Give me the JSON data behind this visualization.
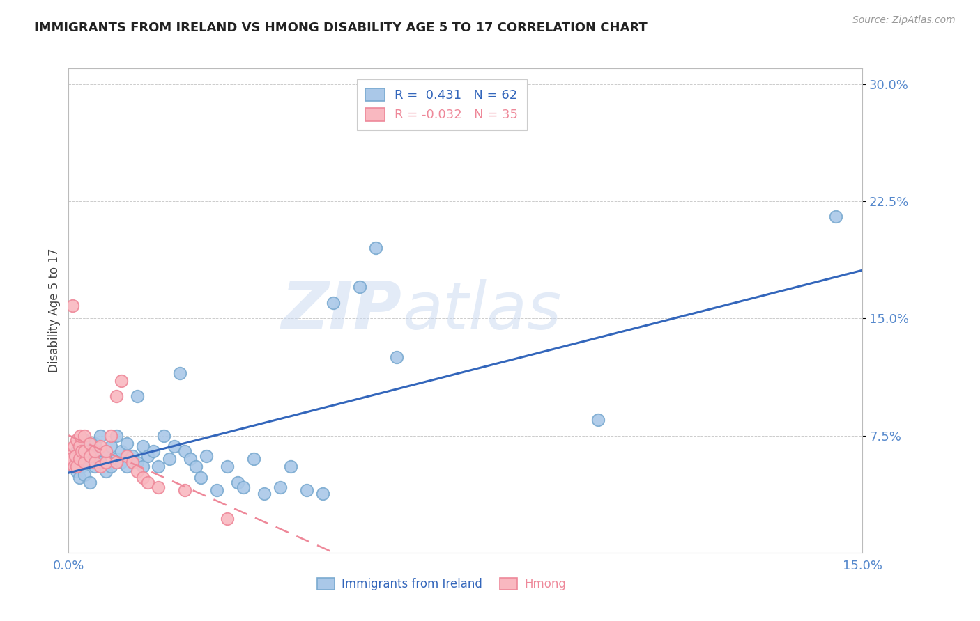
{
  "title": "IMMIGRANTS FROM IRELAND VS HMONG DISABILITY AGE 5 TO 17 CORRELATION CHART",
  "source": "Source: ZipAtlas.com",
  "ylabel_label": "Disability Age 5 to 17",
  "legend_entries": [
    {
      "label": "Immigrants from Ireland",
      "R": "0.431",
      "N": "62",
      "color": "#6baed6"
    },
    {
      "label": "Hmong",
      "R": "-0.032",
      "N": "35",
      "color": "#fc8d8d"
    }
  ],
  "watermark_zip": "ZIP",
  "watermark_atlas": "atlas",
  "ireland_scatter_x": [
    0.0008,
    0.001,
    0.0012,
    0.0015,
    0.0015,
    0.002,
    0.002,
    0.0025,
    0.003,
    0.003,
    0.003,
    0.0035,
    0.004,
    0.004,
    0.005,
    0.005,
    0.005,
    0.006,
    0.006,
    0.007,
    0.007,
    0.008,
    0.008,
    0.009,
    0.009,
    0.01,
    0.01,
    0.011,
    0.011,
    0.012,
    0.013,
    0.013,
    0.014,
    0.014,
    0.015,
    0.016,
    0.017,
    0.018,
    0.019,
    0.02,
    0.021,
    0.022,
    0.023,
    0.024,
    0.025,
    0.026,
    0.028,
    0.03,
    0.032,
    0.033,
    0.035,
    0.037,
    0.04,
    0.042,
    0.045,
    0.048,
    0.05,
    0.055,
    0.058,
    0.062,
    0.1,
    0.145
  ],
  "ireland_scatter_y": [
    0.055,
    0.06,
    0.058,
    0.052,
    0.065,
    0.048,
    0.068,
    0.055,
    0.05,
    0.062,
    0.072,
    0.058,
    0.045,
    0.065,
    0.055,
    0.062,
    0.07,
    0.058,
    0.075,
    0.052,
    0.065,
    0.055,
    0.068,
    0.06,
    0.075,
    0.058,
    0.065,
    0.055,
    0.07,
    0.062,
    0.1,
    0.058,
    0.068,
    0.055,
    0.062,
    0.065,
    0.055,
    0.075,
    0.06,
    0.068,
    0.115,
    0.065,
    0.06,
    0.055,
    0.048,
    0.062,
    0.04,
    0.055,
    0.045,
    0.042,
    0.06,
    0.038,
    0.042,
    0.055,
    0.04,
    0.038,
    0.16,
    0.17,
    0.195,
    0.125,
    0.085,
    0.215
  ],
  "hmong_scatter_x": [
    0.0003,
    0.0005,
    0.0008,
    0.001,
    0.001,
    0.0012,
    0.0015,
    0.0015,
    0.002,
    0.002,
    0.0022,
    0.0025,
    0.003,
    0.003,
    0.003,
    0.004,
    0.004,
    0.005,
    0.005,
    0.006,
    0.006,
    0.007,
    0.007,
    0.008,
    0.009,
    0.009,
    0.01,
    0.011,
    0.012,
    0.013,
    0.014,
    0.015,
    0.017,
    0.022,
    0.03
  ],
  "hmong_scatter_y": [
    0.062,
    0.06,
    0.158,
    0.055,
    0.068,
    0.062,
    0.055,
    0.072,
    0.06,
    0.068,
    0.075,
    0.065,
    0.058,
    0.065,
    0.075,
    0.062,
    0.07,
    0.058,
    0.065,
    0.055,
    0.068,
    0.058,
    0.065,
    0.075,
    0.058,
    0.1,
    0.11,
    0.062,
    0.058,
    0.052,
    0.048,
    0.045,
    0.042,
    0.04,
    0.022
  ],
  "xlim": [
    0.0,
    0.15
  ],
  "ylim": [
    0.0,
    0.31
  ],
  "x_tick_positions": [
    0.0,
    0.15
  ],
  "y_tick_positions": [
    0.075,
    0.15,
    0.225,
    0.3
  ],
  "ireland_line_color": "#3366bb",
  "hmong_line_color": "#ee8899",
  "scatter_ireland_facecolor": "#aac8e8",
  "scatter_ireland_edgecolor": "#7aaad0",
  "scatter_hmong_facecolor": "#f9b8c0",
  "scatter_hmong_edgecolor": "#ee8899",
  "axis_color": "#5588cc",
  "grid_color": "#cccccc",
  "title_fontsize": 13,
  "tick_fontsize": 13,
  "ylabel_fontsize": 12
}
